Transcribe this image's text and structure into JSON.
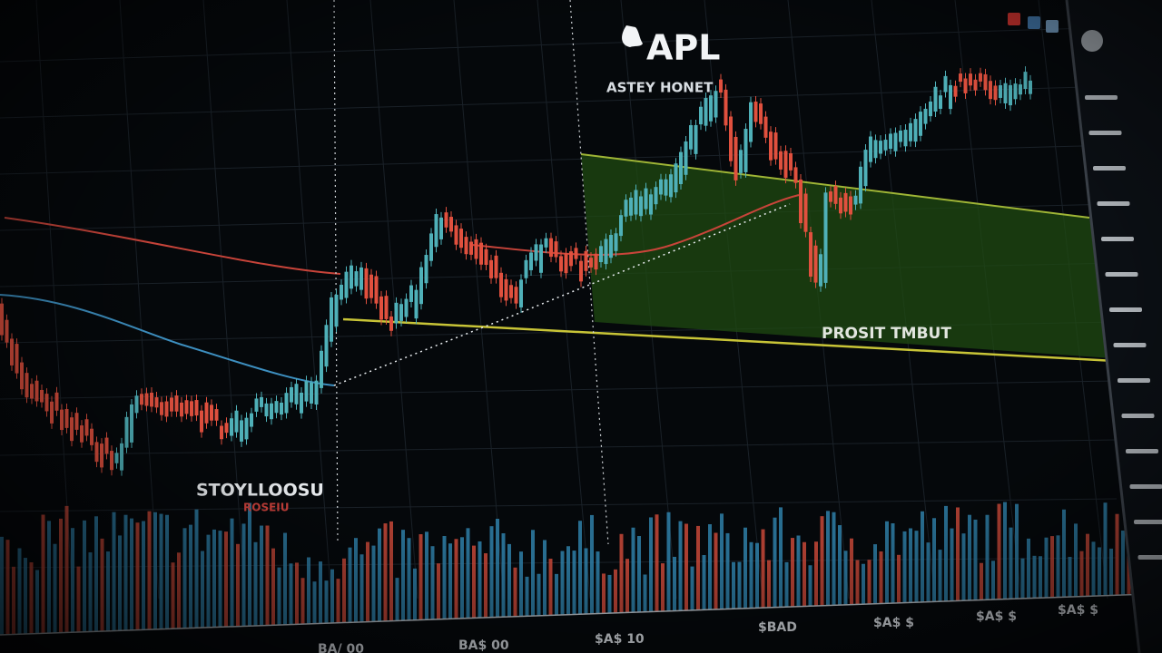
{
  "header": {
    "ticker": "APL",
    "subtitle": "ASTEY HONET"
  },
  "labels": {
    "left": "STOYLLOOSU",
    "left_sub": "ROSEIU",
    "zone": "PROSIT TMBUT"
  },
  "x_axis_labels": [
    "BA/ 00",
    "BA$ 00",
    "$A$ 10",
    "$BAD",
    "$A$ $",
    "$A$ $",
    "$A$ $"
  ]
}
